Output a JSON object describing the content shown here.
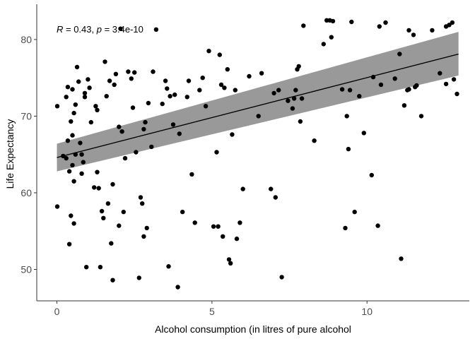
{
  "chart_data": {
    "type": "scatter",
    "title": "",
    "xlabel": "Alcohol consumption (in litres of pure alcohol",
    "ylabel": "Life Expectancy",
    "xlim": [
      -0.65,
      13.3
    ],
    "ylim": [
      45.9,
      84.6
    ],
    "x_ticks": [
      0,
      5,
      10
    ],
    "y_ticks": [
      50,
      60,
      70,
      80
    ],
    "grid": false,
    "legend": "none",
    "annotation": {
      "r_label": "R",
      "r_text": " = 0.43, ",
      "p_label": "p",
      "p_text": " = 3.4e-10"
    },
    "colors": {
      "point": "#000000",
      "line": "#000000",
      "band": "#999999",
      "axis": "#333333"
    },
    "fit": {
      "x": [
        0,
        12.95
      ],
      "y": [
        64.6,
        78.1
      ],
      "band_lower": [
        62.8,
        75.3
      ],
      "band_upper": [
        66.4,
        81.0
      ]
    },
    "points": [
      [
        0.01,
        71.3
      ],
      [
        0.01,
        58.2
      ],
      [
        0.2,
        64.8
      ],
      [
        0.3,
        72.5
      ],
      [
        0.3,
        64.5
      ],
      [
        0.35,
        73.8
      ],
      [
        0.35,
        66.8
      ],
      [
        0.4,
        62.8
      ],
      [
        0.4,
        53.3
      ],
      [
        0.45,
        57
      ],
      [
        0.45,
        69.3
      ],
      [
        0.5,
        73.5
      ],
      [
        0.5,
        63.6
      ],
      [
        0.5,
        67.5
      ],
      [
        0.55,
        70.4
      ],
      [
        0.55,
        61.5
      ],
      [
        0.55,
        56
      ],
      [
        0.6,
        65
      ],
      [
        0.6,
        71.5
      ],
      [
        0.65,
        76.4
      ],
      [
        0.7,
        74.5
      ],
      [
        0.75,
        66.5
      ],
      [
        0.8,
        65
      ],
      [
        0.8,
        62.5
      ],
      [
        0.85,
        64
      ],
      [
        0.9,
        73
      ],
      [
        0.9,
        72.5
      ],
      [
        0.95,
        50.3
      ],
      [
        1,
        74.8
      ],
      [
        1.05,
        73.7
      ],
      [
        1.1,
        69.2
      ],
      [
        1.2,
        60.7
      ],
      [
        1.25,
        71.3
      ],
      [
        1.3,
        62.7
      ],
      [
        1.3,
        70.8
      ],
      [
        1.35,
        60.6
      ],
      [
        1.4,
        50.3
      ],
      [
        1.45,
        57.6
      ],
      [
        1.5,
        56.7
      ],
      [
        1.55,
        77.1
      ],
      [
        1.6,
        72.6
      ],
      [
        1.65,
        58.6
      ],
      [
        1.7,
        74.6
      ],
      [
        1.75,
        53.4
      ],
      [
        1.8,
        61.1
      ],
      [
        1.8,
        48.6
      ],
      [
        1.85,
        74.1
      ],
      [
        1.9,
        75.5
      ],
      [
        2,
        68.6
      ],
      [
        2,
        55.7
      ],
      [
        2.05,
        81.4
      ],
      [
        2.1,
        68
      ],
      [
        2.15,
        57.5
      ],
      [
        2.2,
        64.5
      ],
      [
        2.3,
        75.8
      ],
      [
        2.4,
        74.9
      ],
      [
        2.45,
        71.1
      ],
      [
        2.5,
        75.7
      ],
      [
        2.55,
        65.3
      ],
      [
        2.65,
        48.9
      ],
      [
        2.7,
        59.4
      ],
      [
        2.75,
        58.6
      ],
      [
        2.8,
        68.3
      ],
      [
        2.8,
        54.3
      ],
      [
        2.85,
        69.2
      ],
      [
        2.9,
        55.4
      ],
      [
        2.95,
        71.7
      ],
      [
        3.05,
        66
      ],
      [
        3.1,
        75.8
      ],
      [
        3.2,
        81.3
      ],
      [
        3.4,
        71.6
      ],
      [
        3.5,
        74.6
      ],
      [
        3.55,
        73.6
      ],
      [
        3.6,
        50.4
      ],
      [
        3.65,
        72.6
      ],
      [
        3.75,
        68.9
      ],
      [
        3.8,
        72.8
      ],
      [
        3.9,
        47.7
      ],
      [
        3.95,
        67.7
      ],
      [
        4.05,
        57.5
      ],
      [
        4.2,
        72.5
      ],
      [
        4.25,
        74.6
      ],
      [
        4.35,
        62.4
      ],
      [
        4.45,
        56.1
      ],
      [
        4.6,
        73.4
      ],
      [
        4.7,
        75
      ],
      [
        4.8,
        71.3
      ],
      [
        4.9,
        78.5
      ],
      [
        5.05,
        55.6
      ],
      [
        5.15,
        65.3
      ],
      [
        5.2,
        55.6
      ],
      [
        5.25,
        78
      ],
      [
        5.3,
        74.1
      ],
      [
        5.35,
        54.3
      ],
      [
        5.4,
        73.7
      ],
      [
        5.5,
        76.1
      ],
      [
        5.55,
        51.3
      ],
      [
        5.6,
        50.8
      ],
      [
        5.65,
        67.6
      ],
      [
        5.75,
        73.4
      ],
      [
        5.8,
        54
      ],
      [
        5.9,
        56.1
      ],
      [
        6,
        60.5
      ],
      [
        6.2,
        75.2
      ],
      [
        6.5,
        70
      ],
      [
        6.6,
        75.6
      ],
      [
        6.9,
        60.5
      ],
      [
        7,
        73
      ],
      [
        7.05,
        59.4
      ],
      [
        7.15,
        73.4
      ],
      [
        7.25,
        49
      ],
      [
        7.45,
        72
      ],
      [
        7.6,
        71
      ],
      [
        7.65,
        72.3
      ],
      [
        7.7,
        73.4
      ],
      [
        7.75,
        76.1
      ],
      [
        7.8,
        76.5
      ],
      [
        7.85,
        69.3
      ],
      [
        7.9,
        72.3
      ],
      [
        7.95,
        81.8
      ],
      [
        8.3,
        66.8
      ],
      [
        8.6,
        79.4
      ],
      [
        8.7,
        82.5
      ],
      [
        8.8,
        82.5
      ],
      [
        8.85,
        80.3
      ],
      [
        8.9,
        82.4
      ],
      [
        9.2,
        73.5
      ],
      [
        9.3,
        55.4
      ],
      [
        9.35,
        70
      ],
      [
        9.4,
        65.7
      ],
      [
        9.45,
        73.4
      ],
      [
        9.5,
        82.3
      ],
      [
        9.6,
        57.5
      ],
      [
        9.75,
        72.6
      ],
      [
        9.9,
        67.8
      ],
      [
        10.15,
        62.3
      ],
      [
        10.2,
        75.1
      ],
      [
        10.35,
        55.7
      ],
      [
        10.4,
        81.7
      ],
      [
        10.45,
        74.1
      ],
      [
        10.6,
        82.2
      ],
      [
        10.9,
        74.9
      ],
      [
        11.05,
        78.1
      ],
      [
        11.1,
        51.4
      ],
      [
        11.2,
        71.4
      ],
      [
        11.3,
        73.4
      ],
      [
        11.35,
        73.5
      ],
      [
        11.35,
        81.2
      ],
      [
        11.5,
        80.6
      ],
      [
        11.55,
        73.8
      ],
      [
        11.6,
        74
      ],
      [
        11.75,
        70
      ],
      [
        12.1,
        81.2
      ],
      [
        12.35,
        75.6
      ],
      [
        12.55,
        81.7
      ],
      [
        12.55,
        74.2
      ],
      [
        12.65,
        81.9
      ],
      [
        12.75,
        82.2
      ],
      [
        12.8,
        74.8
      ],
      [
        12.9,
        72.9
      ]
    ]
  }
}
